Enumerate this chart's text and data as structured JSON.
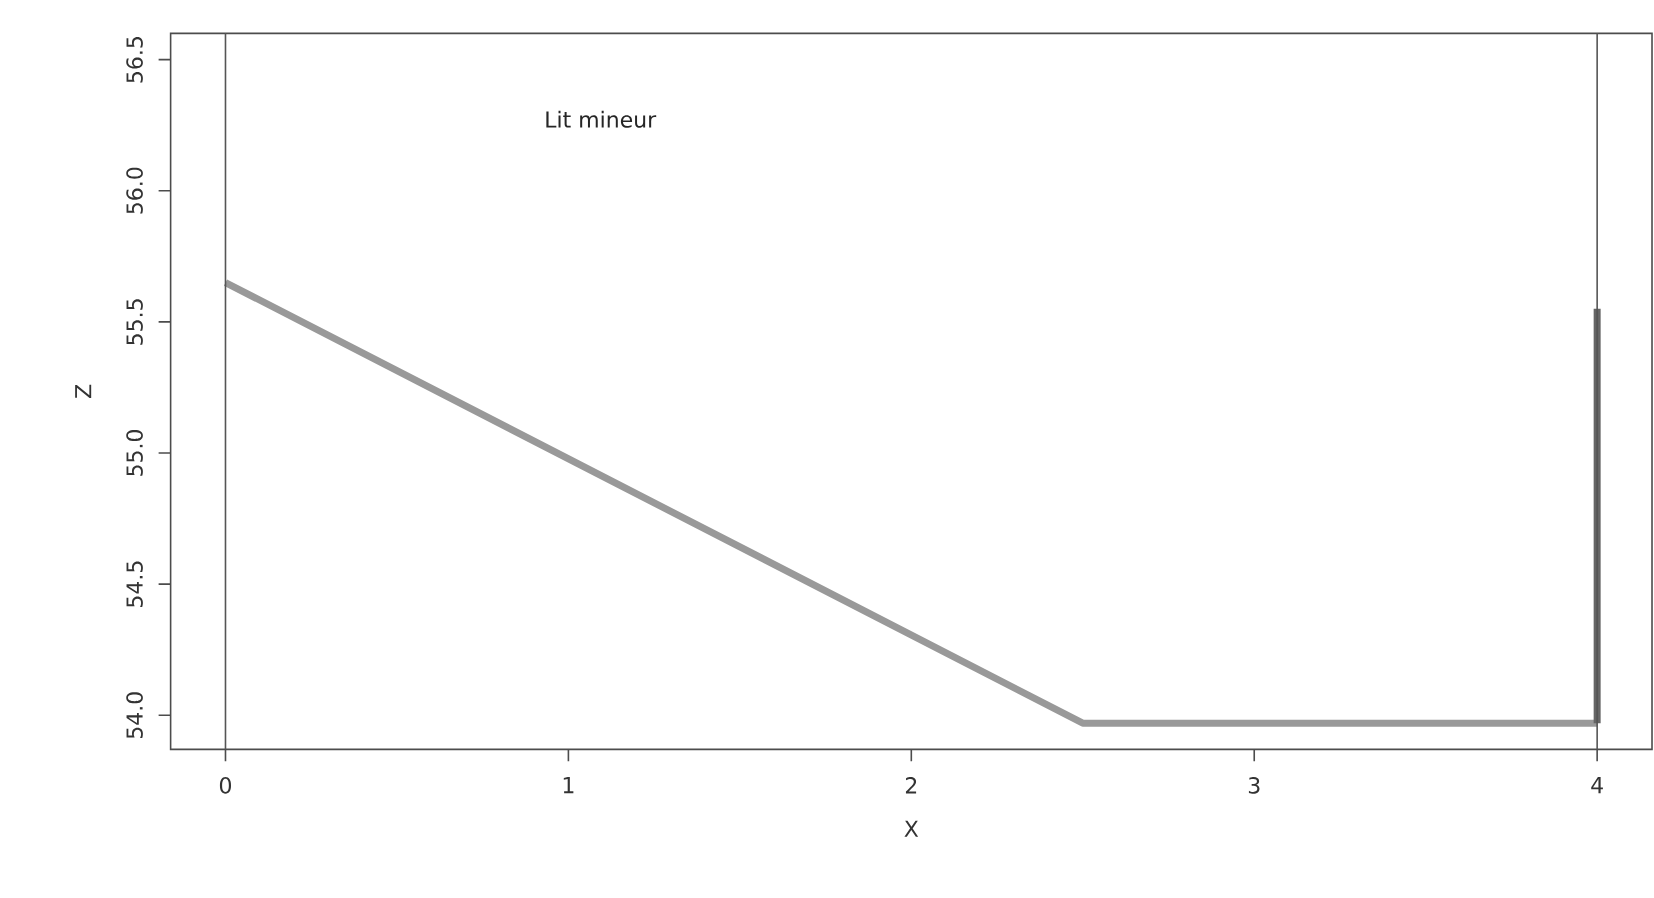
{
  "chart_data": {
    "type": "line",
    "xlabel": "X",
    "ylabel": "Z",
    "xlim": [
      -0.16,
      4.16
    ],
    "ylim": [
      53.87,
      56.6
    ],
    "xticks": [
      0,
      1,
      2,
      3,
      4
    ],
    "yticks": [
      {
        "value": 54.0,
        "label": "54.0"
      },
      {
        "value": 54.5,
        "label": "54.5"
      },
      {
        "value": 55.0,
        "label": "55.0"
      },
      {
        "value": 55.5,
        "label": "55.5"
      },
      {
        "value": 56.0,
        "label": "56.0"
      },
      {
        "value": 56.5,
        "label": "56.5"
      }
    ],
    "annotations": [
      "Lit mineur"
    ],
    "ref_lines": [
      {
        "axis": "x",
        "value": 0,
        "color": "#555555"
      },
      {
        "axis": "x",
        "value": 4,
        "color": "#555555"
      }
    ],
    "series": [
      {
        "color": "#999999",
        "x": [
          0,
          2.5,
          4
        ],
        "values": [
          55.65,
          53.97,
          53.97
        ]
      },
      {
        "color": "#666666",
        "x": [
          4,
          4
        ],
        "values": [
          53.97,
          55.55
        ]
      }
    ]
  }
}
